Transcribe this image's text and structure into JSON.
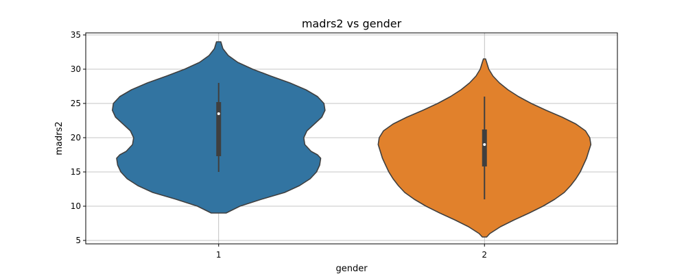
{
  "chart_data": {
    "type": "violin",
    "title": "madrs2 vs gender",
    "xlabel": "gender",
    "ylabel": "madrs2",
    "ylim": [
      4.5,
      35.3
    ],
    "yticks": [
      5,
      10,
      15,
      20,
      25,
      30,
      35
    ],
    "grid": true,
    "categories": [
      "1",
      "2"
    ],
    "series": [
      {
        "category": "1",
        "color": "#3274a1",
        "min": 9,
        "max": 34,
        "whisker_low": 15,
        "whisker_high": 28,
        "q1": 17.3,
        "median": 23.5,
        "q3": 25.2,
        "density": [
          [
            9,
            0.07
          ],
          [
            10,
            0.2
          ],
          [
            11,
            0.4
          ],
          [
            12,
            0.62
          ],
          [
            13,
            0.76
          ],
          [
            14,
            0.86
          ],
          [
            15,
            0.92
          ],
          [
            16,
            0.95
          ],
          [
            17,
            0.96
          ],
          [
            17.5,
            0.93
          ],
          [
            18,
            0.87
          ],
          [
            19,
            0.81
          ],
          [
            20,
            0.8
          ],
          [
            21,
            0.83
          ],
          [
            22,
            0.9
          ],
          [
            23,
            0.97
          ],
          [
            24,
            1.0
          ],
          [
            25,
            0.99
          ],
          [
            26,
            0.93
          ],
          [
            27,
            0.82
          ],
          [
            28,
            0.67
          ],
          [
            29,
            0.49
          ],
          [
            30,
            0.32
          ],
          [
            31,
            0.18
          ],
          [
            32,
            0.09
          ],
          [
            33,
            0.04
          ],
          [
            34,
            0.02
          ]
        ]
      },
      {
        "category": "2",
        "color": "#e1812c",
        "min": 5.5,
        "max": 31.5,
        "whisker_low": 11,
        "whisker_high": 26,
        "q1": 15.8,
        "median": 19,
        "q3": 21.2,
        "density": [
          [
            5.5,
            0.02
          ],
          [
            6,
            0.05
          ],
          [
            7,
            0.15
          ],
          [
            8,
            0.28
          ],
          [
            9,
            0.42
          ],
          [
            10,
            0.55
          ],
          [
            11,
            0.66
          ],
          [
            12,
            0.75
          ],
          [
            13,
            0.81
          ],
          [
            14,
            0.86
          ],
          [
            15,
            0.9
          ],
          [
            16,
            0.93
          ],
          [
            17,
            0.96
          ],
          [
            18,
            0.98
          ],
          [
            19,
            1.0
          ],
          [
            20,
            0.99
          ],
          [
            21,
            0.95
          ],
          [
            22,
            0.86
          ],
          [
            23,
            0.73
          ],
          [
            24,
            0.58
          ],
          [
            25,
            0.44
          ],
          [
            26,
            0.32
          ],
          [
            27,
            0.22
          ],
          [
            28,
            0.14
          ],
          [
            29,
            0.08
          ],
          [
            30,
            0.04
          ],
          [
            31,
            0.02
          ],
          [
            31.5,
            0.01
          ]
        ]
      }
    ]
  }
}
